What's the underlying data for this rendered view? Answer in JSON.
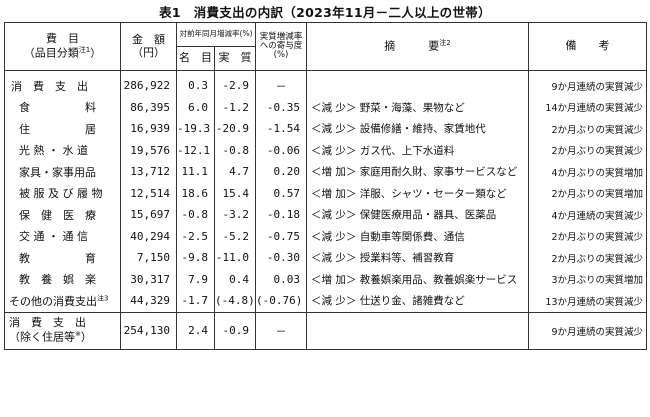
{
  "title": "表1　消費支出の内訳（2023年11月－二人以上の世帯）",
  "header": {
    "item_label": "費　目",
    "item_sublabel": "（品目分類",
    "item_sublabel_note": "注1",
    "item_sublabel_close": "）",
    "amount_label": "金　額",
    "amount_unit": "（円）",
    "change_label": "対前年同月増減率(%)",
    "nominal_label": "名　目",
    "real_label": "実　質",
    "contrib_label": "実質増減率への寄与度(%)",
    "summary_label": "摘　　　要",
    "summary_note": "注2",
    "remarks_label": "備　　考"
  },
  "rows": [
    {
      "item": "消　費　支　出",
      "note": "",
      "amount": "286,922",
      "nominal": "0.3",
      "real": "-2.9",
      "contrib": "－",
      "summary": "",
      "remark": "9か月連続の実質減少"
    },
    {
      "item": "食　　　　　料",
      "note": "",
      "amount": "86,395",
      "nominal": "6.0",
      "real": "-1.2",
      "contrib": "-0.35",
      "summary": "＜減 少＞ 野菜・海藻、果物など",
      "remark": "14か月連続の実質減少"
    },
    {
      "item": "住　　　　　居",
      "note": "",
      "amount": "16,939",
      "nominal": "-19.3",
      "real": "-20.9",
      "contrib": "-1.54",
      "summary": "＜減 少＞ 設備修繕・維持、家賃地代",
      "remark": "2か月ぶりの実質減少"
    },
    {
      "item": "光 熱 ・ 水 道",
      "note": "",
      "amount": "19,576",
      "nominal": "-12.1",
      "real": "-0.8",
      "contrib": "-0.06",
      "summary": "＜減 少＞ ガス代、上下水道料",
      "remark": "2か月ぶりの実質減少"
    },
    {
      "item": "家具・家事用品",
      "note": "",
      "amount": "13,712",
      "nominal": "11.1",
      "real": "4.7",
      "contrib": "0.20",
      "summary": "＜増 加＞ 家庭用耐久財、家事サービスなど",
      "remark": "4か月ぶりの実質増加"
    },
    {
      "item": "被 服 及 び 履 物",
      "note": "",
      "amount": "12,514",
      "nominal": "18.6",
      "real": "15.4",
      "contrib": "0.57",
      "summary": "＜増 加＞ 洋服、シャツ・セーター類など",
      "remark": "2か月ぶりの実質増加"
    },
    {
      "item": "保　健　医　療",
      "note": "",
      "amount": "15,697",
      "nominal": "-0.8",
      "real": "-3.2",
      "contrib": "-0.18",
      "summary": "＜減 少＞ 保健医療用品・器具、医薬品",
      "remark": "4か月連続の実質減少"
    },
    {
      "item": "交 通 ・ 通 信",
      "note": "",
      "amount": "40,294",
      "nominal": "-2.5",
      "real": "-5.2",
      "contrib": "-0.75",
      "summary": "＜減 少＞ 自動車等関係費、通信",
      "remark": "2か月ぶりの実質減少"
    },
    {
      "item": "教　　　　　育",
      "note": "",
      "amount": "7,150",
      "nominal": "-9.8",
      "real": "-11.0",
      "contrib": "-0.30",
      "summary": "＜減 少＞ 授業料等、補習教育",
      "remark": "2か月ぶりの実質減少"
    },
    {
      "item": "教　養　娯　楽",
      "note": "",
      "amount": "30,317",
      "nominal": "7.9",
      "real": "0.4",
      "contrib": "0.03",
      "summary": "＜増 加＞ 教養娯楽用品、教養娯楽サービス",
      "remark": "3か月ぶりの実質増加"
    },
    {
      "item": "その他の消費支出",
      "note": "注3",
      "amount": "44,329",
      "nominal": "-1.7",
      "real": "(-4.8)",
      "contrib": "(-0.76)",
      "summary": "＜減 少＞ 仕送り金、諸雑費など",
      "remark": "13か月連続の実質減少"
    }
  ],
  "footer_row": {
    "item_line1": "消　費　支　出",
    "item_line2": "（除く住居等",
    "item_note": "※",
    "item_close": "）",
    "amount": "254,130",
    "nominal": "2.4",
    "real": "-0.9",
    "contrib": "－",
    "summary": "",
    "remark": "9か月連続の実質減少"
  }
}
